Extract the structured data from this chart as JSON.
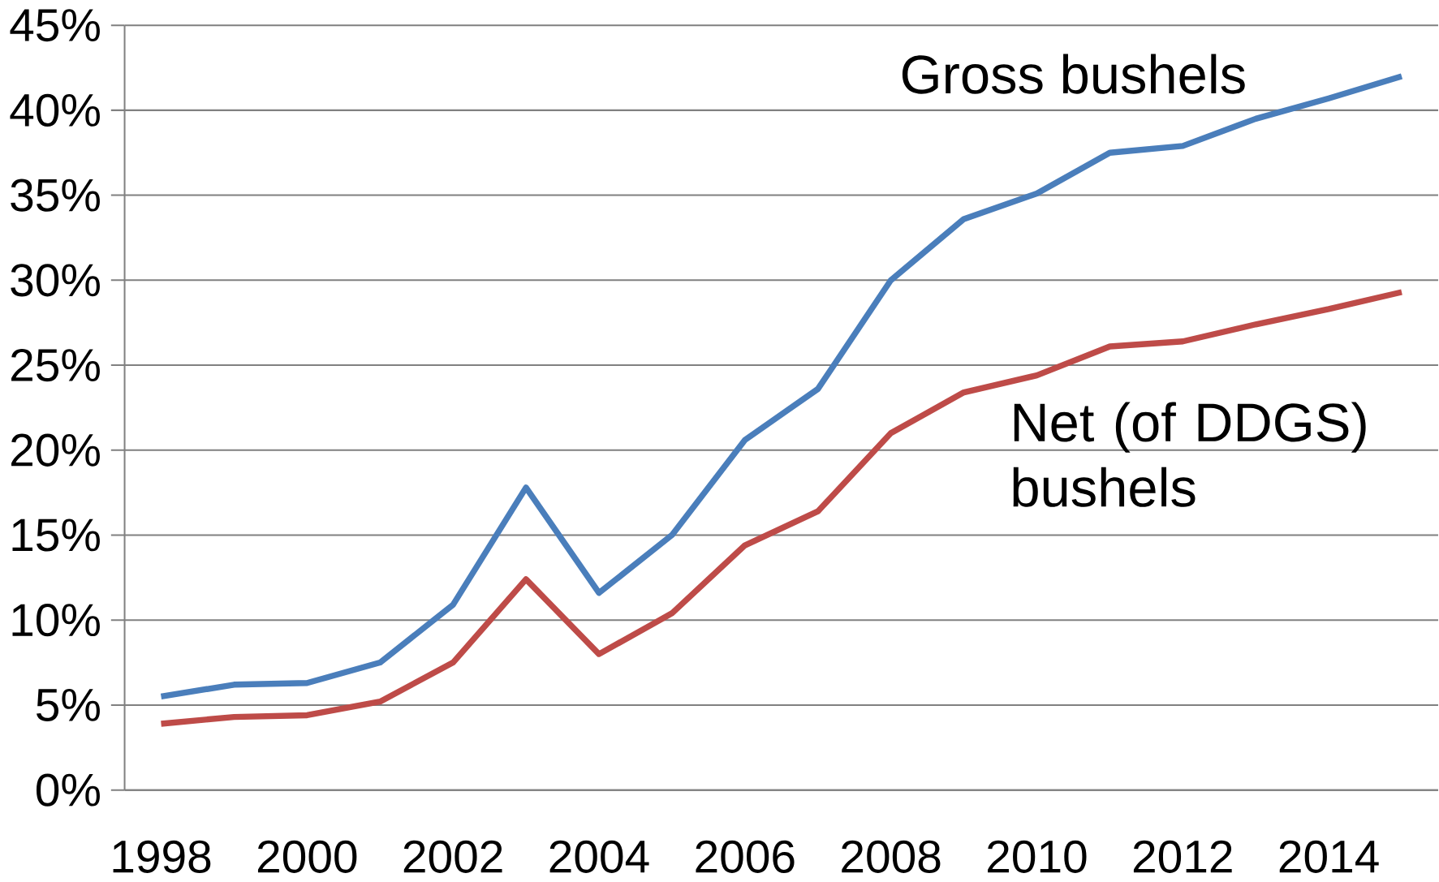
{
  "chart_data": {
    "type": "line",
    "categories": [
      "1998",
      null,
      "2000",
      null,
      "2002",
      null,
      "2004",
      null,
      "2006",
      null,
      "2008",
      null,
      "2010",
      null,
      "2012",
      null,
      "2014",
      null
    ],
    "series": [
      {
        "name": "Gross bushels",
        "color": "#4a7ebb",
        "values": [
          5.5,
          6.2,
          6.3,
          7.5,
          10.9,
          17.8,
          11.6,
          15.0,
          20.6,
          23.6,
          30.0,
          33.6,
          35.1,
          37.5,
          37.9,
          39.5,
          40.7,
          42.0
        ]
      },
      {
        "name": "Net (of DDGS) bushels",
        "color": "#be4b48",
        "values": [
          3.9,
          4.3,
          4.4,
          5.2,
          7.5,
          12.4,
          8.0,
          10.4,
          14.4,
          16.4,
          21.0,
          23.4,
          24.4,
          26.1,
          26.4,
          27.4,
          28.3,
          29.3
        ]
      }
    ],
    "ylim": [
      0,
      45
    ],
    "yticks": [
      {
        "value": 0,
        "label": "0%"
      },
      {
        "value": 5,
        "label": "5%"
      },
      {
        "value": 10,
        "label": "10%"
      },
      {
        "value": 15,
        "label": "15%"
      },
      {
        "value": 20,
        "label": "20%"
      },
      {
        "value": 25,
        "label": "25%"
      },
      {
        "value": 30,
        "label": "30%"
      },
      {
        "value": 35,
        "label": "35%"
      },
      {
        "value": 40,
        "label": "40%"
      },
      {
        "value": 45,
        "label": "45%"
      }
    ],
    "grid": "y",
    "legend": false,
    "marker": "none",
    "line_style": "solid"
  }
}
